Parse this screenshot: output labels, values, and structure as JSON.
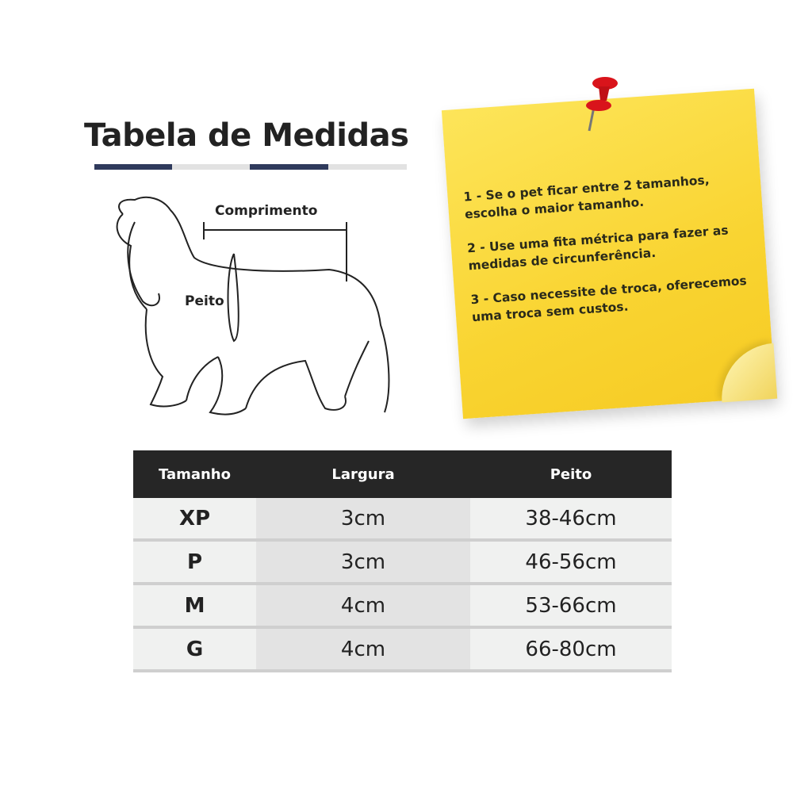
{
  "title": "Tabela de Medidas",
  "colors": {
    "accent_bar": "#2f3a5c",
    "light_bar": "#e2e2e2",
    "note": "#f9d431",
    "header_bg": "#262626"
  },
  "diagram": {
    "comprimento_label": "Comprimento",
    "peito_label": "Peito"
  },
  "note": {
    "items": [
      "1 - Se o pet ficar entre 2 tamanhos, escolha o maior tamanho.",
      "2 - Use uma fita métrica para fazer as medidas de circunferência.",
      "3 - Caso necessite de troca, oferecemos uma troca sem custos."
    ],
    "icon": "push-pin-icon"
  },
  "table": {
    "headers": [
      "Tamanho",
      "Largura",
      "Peito"
    ],
    "rows": [
      [
        "XP",
        "3cm",
        "38-46cm"
      ],
      [
        "P",
        "3cm",
        "46-56cm"
      ],
      [
        "M",
        "4cm",
        "53-66cm"
      ],
      [
        "G",
        "4cm",
        "66-80cm"
      ]
    ]
  }
}
